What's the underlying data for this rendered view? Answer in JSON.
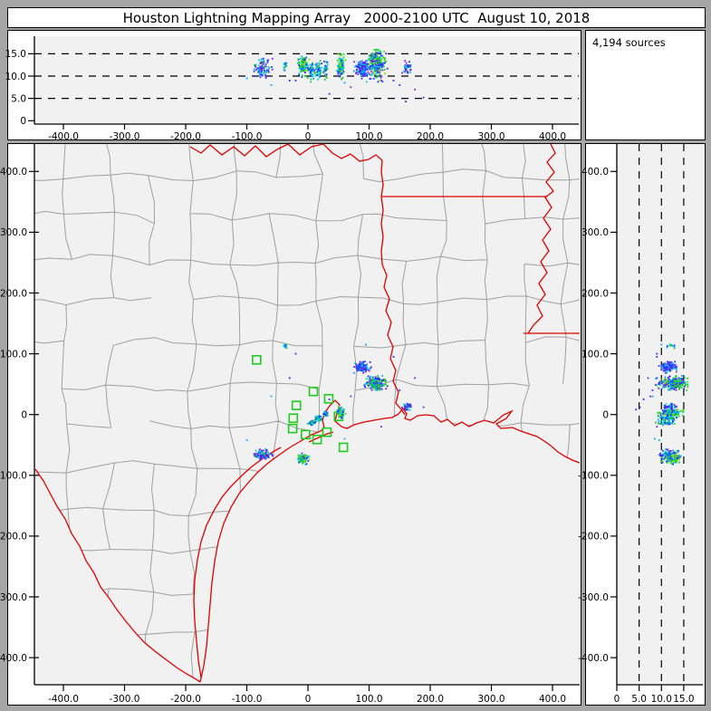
{
  "window": {
    "title": "Houston Lightning Mapping Array   2000-2100 UTC  August 10, 2018"
  },
  "sources_box": {
    "label": "4,194 sources"
  },
  "colors": {
    "frame_bg": "#a6a6a6",
    "panel_bg": "#ffffff",
    "plot_bg": "#f1f1f1",
    "axis": "#000000",
    "county_line": "#a0a0a0",
    "state_border": "#e00000",
    "station": "#1ecc1e"
  },
  "chart_data": {
    "type": "scatter",
    "title": "Houston Lightning Mapping Array   2000-2100 UTC  August 10, 2018",
    "source_count": 4194,
    "description": "Lightning Mapping Array source locations: plan-view map (km E-W vs km N-S), top panel altitude (km) vs E-W distance, right panel N-S distance vs altitude (km). Dashed reference lines at 5, 10, 15 km altitude.",
    "panels": {
      "top": {
        "x_ticks": {
          "labels": [
            "-400.0",
            "-300.0",
            "-200.0",
            "-100.0",
            "0",
            "100.0",
            "200.0",
            "300.0",
            "400.0"
          ],
          "values": [
            -400,
            -300,
            -200,
            -100,
            0,
            100,
            200,
            300,
            400
          ]
        },
        "y_ticks": {
          "labels": [
            "0",
            "5.0",
            "10.0",
            "15.0"
          ],
          "values": [
            0,
            5,
            10,
            15
          ]
        },
        "grid": "horizontal dashed at 5,10,15 km",
        "x_range_km": [
          -447,
          443
        ],
        "y_range_km": [
          0,
          18.9
        ]
      },
      "map": {
        "x_ticks": {
          "labels": [
            "-400.0",
            "-300.0",
            "-200.0",
            "-100.0",
            "0",
            "100.0",
            "200.0",
            "300.0",
            "400.0"
          ],
          "values": [
            -400,
            -300,
            -200,
            -100,
            0,
            100,
            200,
            300,
            400
          ]
        },
        "y_ticks": {
          "labels": [
            "400.0",
            "300.0",
            "200.0",
            "100.0",
            "0",
            "-100.0",
            "-200.0",
            "-300.0",
            "-400.0"
          ],
          "values": [
            400,
            300,
            200,
            100,
            0,
            -100,
            -200,
            -300,
            -400
          ]
        },
        "overlay": "Texas/Louisiana county lines (gray), state borders and Gulf coastline (red), LMA station squares (green)",
        "x_range_km": [
          -447,
          444
        ],
        "y_range_km": [
          -445,
          445
        ]
      },
      "right": {
        "x_ticks": {
          "labels": [
            "0",
            "5.0",
            "10.0",
            "15.0"
          ],
          "values": [
            0,
            5,
            10,
            15
          ]
        },
        "y_ticks": {
          "labels": [
            "400.0",
            "300.0",
            "200.0",
            "100.0",
            "0",
            "-100.0",
            "-200.0",
            "-300.0",
            "-400.0"
          ],
          "values": [
            400,
            300,
            200,
            100,
            0,
            -100,
            -200,
            -300,
            -400
          ]
        },
        "grid": "vertical dashed at 5,10,15 km",
        "x_range_km": [
          0,
          19.3
        ],
        "y_range_km": [
          -445,
          445
        ]
      }
    },
    "palettes": {
      "pb": [
        [
          "#7a1fe8",
          3
        ],
        [
          "#2233ff",
          5
        ],
        [
          "#00a8ff",
          2
        ],
        [
          "#00d4d4",
          1
        ]
      ],
      "pb2": [
        [
          "#7a1fe8",
          2
        ],
        [
          "#2233ff",
          4
        ],
        [
          "#00a8ff",
          2
        ],
        [
          "#00d4d4",
          2
        ],
        [
          "#1fc832",
          1
        ]
      ],
      "bcg": [
        [
          "#2233ff",
          3
        ],
        [
          "#00a8ff",
          2
        ],
        [
          "#00d4d4",
          3
        ],
        [
          "#1fc832",
          2
        ]
      ],
      "gc": [
        [
          "#2233ff",
          2
        ],
        [
          "#00c8e0",
          3
        ],
        [
          "#1fc832",
          3
        ],
        [
          "#2ee02e",
          1
        ],
        [
          "#9fd400",
          1
        ]
      ],
      "cbig": [
        [
          "#7a1fe8",
          2
        ],
        [
          "#2233ff",
          5
        ],
        [
          "#00a8ff",
          3
        ],
        [
          "#00d4d4",
          3
        ],
        [
          "#1fc832",
          3
        ],
        [
          "#9fd400",
          1
        ]
      ],
      "dp": [
        [
          "#7a1fe8",
          3
        ],
        [
          "#2233ff",
          3
        ],
        [
          "#00d4d4",
          2
        ]
      ],
      "stray": [
        [
          "#2233ff",
          2
        ],
        [
          "#7a1fe8",
          1
        ],
        [
          "#00a8ff",
          1
        ]
      ]
    },
    "clusters": [
      {
        "name": "sw-coastal-storm",
        "x_km": -75,
        "y_km": -66,
        "sx_km": 13,
        "sy_km": 8,
        "alt_km": [
          9.5,
          13.5
        ],
        "count": 85,
        "palette": "pb2"
      },
      {
        "name": "galveston-storm",
        "x_km": -8,
        "y_km": -73,
        "sx_km": 8,
        "sy_km": 7,
        "alt_km": [
          10,
          14
        ],
        "count": 110,
        "palette": "gc"
      },
      {
        "name": "houston-chain-a",
        "x_km": 6,
        "y_km": -14,
        "sx_km": 5,
        "sy_km": 4,
        "alt_km": [
          9,
          12.5
        ],
        "count": 40,
        "palette": "bcg"
      },
      {
        "name": "houston-chain-b",
        "x_km": 17,
        "y_km": -6,
        "sx_km": 5,
        "sy_km": 4,
        "alt_km": [
          9,
          13
        ],
        "count": 45,
        "palette": "bcg"
      },
      {
        "name": "houston-chain-c",
        "x_km": 29,
        "y_km": 1,
        "sx_km": 4,
        "sy_km": 4,
        "alt_km": [
          9.5,
          13
        ],
        "count": 35,
        "palette": "bcg"
      },
      {
        "name": "baytown-storm",
        "x_km": 54,
        "y_km": 3,
        "sx_km": 6,
        "sy_km": 9,
        "alt_km": [
          9,
          14.5
        ],
        "count": 100,
        "palette": "gc"
      },
      {
        "name": "ne-storm-west",
        "x_km": 88,
        "y_km": 79,
        "sx_km": 12,
        "sy_km": 8,
        "alt_km": [
          9.5,
          13
        ],
        "count": 130,
        "palette": "pb"
      },
      {
        "name": "ne-storm-main",
        "x_km": 112,
        "y_km": 52,
        "sx_km": 15,
        "sy_km": 9,
        "alt_km": [
          9,
          15.5
        ],
        "count": 260,
        "palette": "cbig",
        "green_top": true
      },
      {
        "name": "east-storm",
        "x_km": 163,
        "y_km": 13,
        "sx_km": 7,
        "sy_km": 5,
        "alt_km": [
          10,
          13
        ],
        "count": 45,
        "palette": "dp"
      },
      {
        "name": "north-small-cell",
        "x_km": -38,
        "y_km": 113,
        "sx_km": 3,
        "sy_km": 3,
        "alt_km": [
          10.5,
          12.5
        ],
        "count": 14,
        "palette": "bcg"
      }
    ],
    "strays": [
      [
        160,
        8,
        4.3
      ],
      [
        189,
        12,
        5.2
      ],
      [
        -60,
        30,
        8
      ],
      [
        95,
        115,
        10
      ],
      [
        140,
        95,
        9
      ],
      [
        175,
        60,
        7
      ],
      [
        -30,
        60,
        9
      ],
      [
        60,
        -40,
        8.5
      ],
      [
        120,
        -20,
        9
      ],
      [
        -100,
        -42,
        9.5
      ],
      [
        35,
        25,
        6
      ],
      [
        -20,
        100,
        9
      ],
      [
        150,
        40,
        8
      ],
      [
        70,
        30,
        7.5
      ]
    ],
    "stations_km": [
      [
        -84,
        90
      ],
      [
        9,
        38
      ],
      [
        34,
        26
      ],
      [
        -19,
        15
      ],
      [
        -24,
        -6
      ],
      [
        -25,
        -23
      ],
      [
        -4,
        -33
      ],
      [
        15,
        -41
      ],
      [
        31,
        -29
      ],
      [
        50,
        -3
      ],
      [
        58,
        -54
      ]
    ]
  }
}
